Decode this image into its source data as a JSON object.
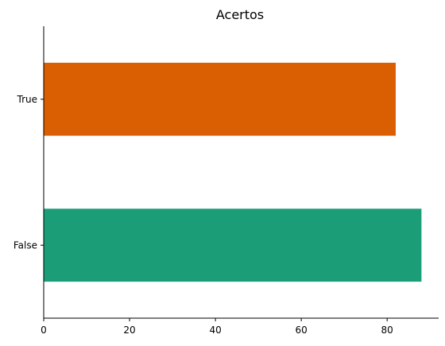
{
  "chart_data": {
    "type": "bar",
    "orientation": "horizontal",
    "title": "Acertos",
    "categories": [
      "False",
      "True"
    ],
    "values": [
      88,
      82
    ],
    "colors": [
      "#1b9e77",
      "#d95f02"
    ],
    "xlim": [
      0,
      92
    ],
    "xticks": [
      0,
      20,
      40,
      60,
      80
    ],
    "xlabel": "",
    "ylabel": "",
    "grid": false,
    "legend": "none"
  }
}
